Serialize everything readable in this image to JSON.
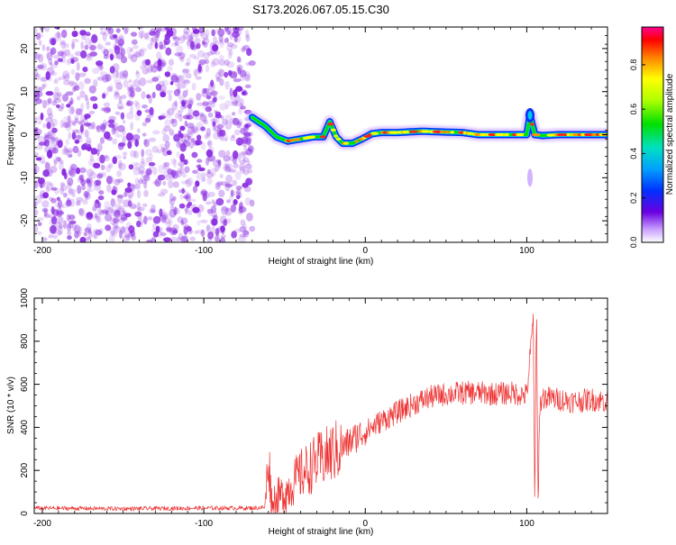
{
  "chart_data": [
    {
      "type": "heatmap",
      "title": "S173.2026.067.05.15.C30",
      "xlabel": "Height of straight line (km)",
      "ylabel": "Frequency (Hz)",
      "xlim": [
        -205,
        150
      ],
      "ylim": [
        -25,
        25
      ],
      "xticks": [
        -200,
        -100,
        0,
        100
      ],
      "yticks": [
        -20,
        -10,
        0,
        10,
        20
      ],
      "noise_region_x": [
        -205,
        -70
      ],
      "noise_color": "#8a2be2",
      "signal_track": {
        "x": [
          -70,
          -62,
          -55,
          -48,
          -40,
          -32,
          -26,
          -22,
          -18,
          -14,
          -8,
          -2,
          4,
          10,
          20,
          35,
          50,
          60,
          70,
          85,
          95,
          100,
          102,
          105,
          110,
          120,
          135,
          150
        ],
        "frequency": [
          4,
          2,
          -0.5,
          -1.5,
          -1,
          -0.5,
          -0.5,
          3,
          -0.5,
          -2,
          -2,
          -1,
          0.2,
          0.5,
          0.5,
          0.8,
          0.6,
          0.5,
          0,
          0,
          0,
          0,
          4.5,
          0,
          -0.2,
          0,
          0,
          0
        ]
      },
      "colorbar": {
        "label": "Normalized spectral amplitude",
        "range": [
          0,
          0.97
        ],
        "ticks": [
          "0.0",
          "0.2",
          "0.4",
          "0.6",
          "0.8"
        ]
      }
    },
    {
      "type": "line",
      "title": "",
      "xlabel": "Height of straight line (km)",
      "ylabel": "SNR (10 * v/v)",
      "xlim": [
        -205,
        150
      ],
      "ylim": [
        0,
        1000
      ],
      "xticks": [
        -200,
        -100,
        0,
        100
      ],
      "yticks": [
        0,
        200,
        400,
        600,
        800,
        1000
      ],
      "color": "#ee3333",
      "series": [
        {
          "name": "SNR",
          "x": [
            -205,
            -150,
            -100,
            -70,
            -62,
            -60,
            -58,
            -55,
            -50,
            -45,
            -40,
            -35,
            -30,
            -25,
            -20,
            -15,
            -10,
            -5,
            0,
            10,
            20,
            30,
            40,
            50,
            60,
            70,
            80,
            90,
            100,
            104,
            105,
            106,
            107,
            108,
            110,
            120,
            130,
            140,
            150
          ],
          "y": [
            25,
            22,
            25,
            25,
            28,
            270,
            60,
            70,
            90,
            140,
            180,
            210,
            240,
            260,
            285,
            300,
            330,
            360,
            380,
            430,
            470,
            510,
            540,
            555,
            560,
            560,
            555,
            560,
            550,
            900,
            30,
            960,
            40,
            500,
            540,
            530,
            520,
            530,
            520
          ]
        }
      ],
      "noise_amplitude": [
        {
          "x": [
            -205,
            -62
          ],
          "amp": 10
        },
        {
          "x": [
            -62,
            0
          ],
          "amp": 75
        },
        {
          "x": [
            0,
            150
          ],
          "amp": 55
        }
      ]
    }
  ]
}
